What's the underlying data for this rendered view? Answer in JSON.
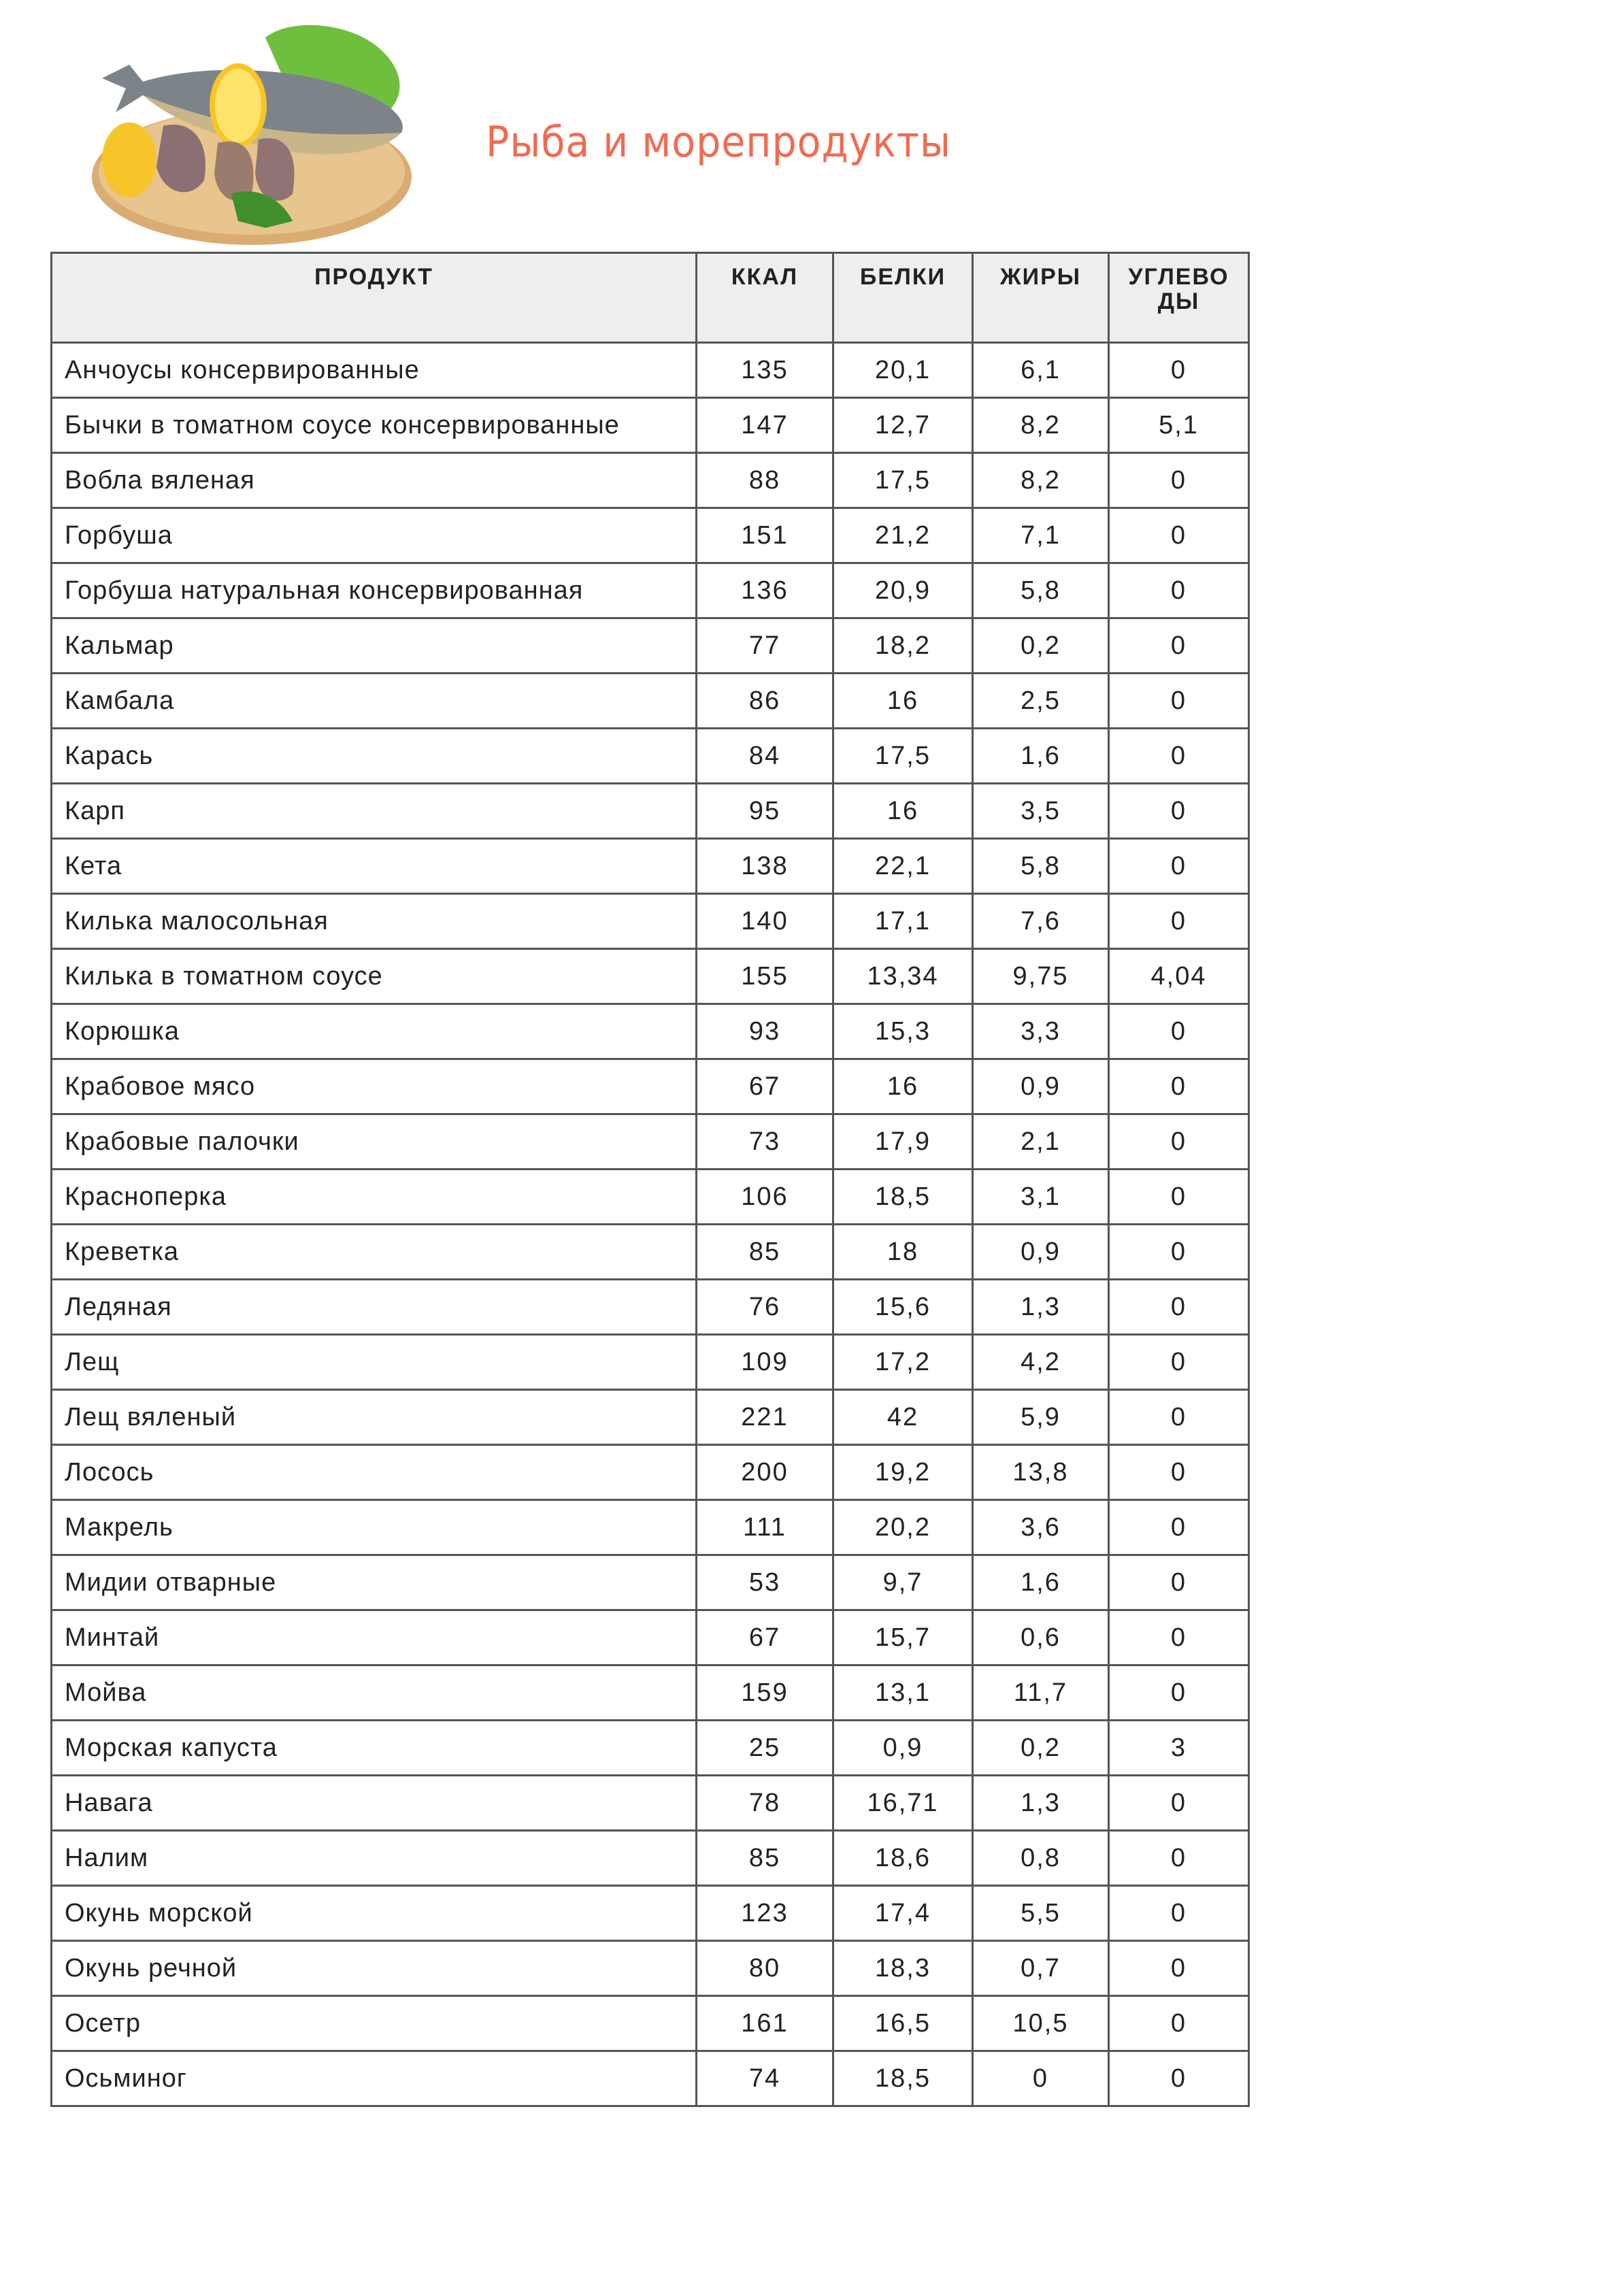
{
  "title": "Рыба и морепродукты",
  "colors": {
    "title": "#f26a4f",
    "header_bg": "#eeeeee",
    "border": "#555555"
  },
  "illustration": "fish-on-board-image",
  "table": {
    "headers": [
      "ПРОДУКТ",
      "ККАЛ",
      "БЕЛКИ",
      "ЖИРЫ",
      "УГЛЕВО ДЫ"
    ],
    "rows": [
      [
        "Анчоусы консервированные",
        "135",
        "20,1",
        "6,1",
        "0"
      ],
      [
        "Бычки в томатном соусе консервированные",
        "147",
        "12,7",
        "8,2",
        "5,1"
      ],
      [
        "Вобла вяленая",
        "88",
        "17,5",
        "8,2",
        "0"
      ],
      [
        "Горбуша",
        "151",
        "21,2",
        "7,1",
        "0"
      ],
      [
        "Горбуша натуральная консервированная",
        "136",
        "20,9",
        "5,8",
        "0"
      ],
      [
        "Кальмар",
        "77",
        "18,2",
        "0,2",
        "0"
      ],
      [
        "Камбала",
        "86",
        "16",
        "2,5",
        "0"
      ],
      [
        "Карась",
        "84",
        "17,5",
        "1,6",
        "0"
      ],
      [
        "Карп",
        "95",
        "16",
        "3,5",
        "0"
      ],
      [
        "Кета",
        "138",
        "22,1",
        "5,8",
        "0"
      ],
      [
        "Килька малосольная",
        "140",
        "17,1",
        "7,6",
        "0"
      ],
      [
        "Килька в томатном соусе",
        "155",
        "13,34",
        "9,75",
        "4,04"
      ],
      [
        "Корюшка",
        "93",
        "15,3",
        "3,3",
        "0"
      ],
      [
        "Крабовое мясо",
        "67",
        "16",
        "0,9",
        "0"
      ],
      [
        "Крабовые палочки",
        "73",
        "17,9",
        "2,1",
        "0"
      ],
      [
        "Красноперка",
        "106",
        "18,5",
        "3,1",
        "0"
      ],
      [
        "Креветка",
        "85",
        "18",
        "0,9",
        "0"
      ],
      [
        "Ледяная",
        "76",
        "15,6",
        "1,3",
        "0"
      ],
      [
        "Лещ",
        "109",
        "17,2",
        "4,2",
        "0"
      ],
      [
        "Лещ вяленый",
        "221",
        "42",
        "5,9",
        "0"
      ],
      [
        "Лосось",
        "200",
        "19,2",
        "13,8",
        "0"
      ],
      [
        "Макрель",
        "111",
        "20,2",
        "3,6",
        "0"
      ],
      [
        "Мидии отварные",
        "53",
        "9,7",
        "1,6",
        "0"
      ],
      [
        "Минтай",
        "67",
        "15,7",
        "0,6",
        "0"
      ],
      [
        "Мойва",
        "159",
        "13,1",
        "11,7",
        "0"
      ],
      [
        "Морская капуста",
        "25",
        "0,9",
        "0,2",
        "3"
      ],
      [
        "Навага",
        "78",
        "16,71",
        "1,3",
        "0"
      ],
      [
        "Налим",
        "85",
        "18,6",
        "0,8",
        "0"
      ],
      [
        "Окунь морской",
        "123",
        "17,4",
        "5,5",
        "0"
      ],
      [
        "Окунь речной",
        "80",
        "18,3",
        "0,7",
        "0"
      ],
      [
        "Осетр",
        "161",
        "16,5",
        "10,5",
        "0"
      ],
      [
        "Осьминог",
        "74",
        "18,5",
        "0",
        "0"
      ]
    ]
  }
}
